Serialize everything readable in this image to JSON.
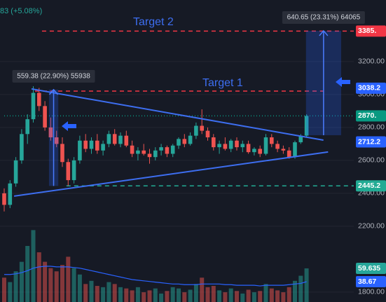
{
  "chart_data": {
    "type": "candlestick",
    "header": "83 (+5.08%)",
    "categories": [
      null,
      null,
      null,
      null,
      null,
      null,
      null,
      null,
      null,
      null,
      null,
      null,
      null,
      null,
      null,
      null,
      null,
      null,
      null,
      null,
      null,
      null,
      null,
      null,
      null,
      null,
      null,
      null,
      null,
      null,
      null,
      null,
      null,
      null,
      null,
      null,
      null,
      null,
      null,
      null,
      null,
      null,
      null,
      null,
      null,
      null,
      null,
      null,
      null,
      null,
      null,
      null,
      null
    ],
    "ohlc": [
      [
        2400,
        2430,
        2290,
        2330
      ],
      [
        2330,
        2480,
        2310,
        2460
      ],
      [
        2460,
        2620,
        2440,
        2600
      ],
      [
        2600,
        2790,
        2580,
        2760
      ],
      [
        2760,
        2880,
        2700,
        2850
      ],
      [
        2850,
        3050,
        2830,
        3010
      ],
      [
        3010,
        3040,
        2900,
        2930
      ],
      [
        2930,
        2960,
        2780,
        2800
      ],
      [
        2800,
        2860,
        2720,
        2740
      ],
      [
        2740,
        2780,
        2680,
        2700
      ],
      [
        2700,
        2740,
        2560,
        2590
      ],
      [
        2590,
        2610,
        2445,
        2480
      ],
      [
        2480,
        2620,
        2460,
        2600
      ],
      [
        2600,
        2750,
        2580,
        2720
      ],
      [
        2720,
        2760,
        2650,
        2670
      ],
      [
        2670,
        2740,
        2640,
        2720
      ],
      [
        2720,
        2760,
        2640,
        2660
      ],
      [
        2660,
        2720,
        2630,
        2700
      ],
      [
        2700,
        2780,
        2680,
        2760
      ],
      [
        2760,
        2790,
        2690,
        2700
      ],
      [
        2700,
        2770,
        2680,
        2750
      ],
      [
        2750,
        2780,
        2680,
        2690
      ],
      [
        2690,
        2720,
        2620,
        2640
      ],
      [
        2640,
        2680,
        2600,
        2660
      ],
      [
        2660,
        2700,
        2630,
        2640
      ],
      [
        2640,
        2670,
        2580,
        2620
      ],
      [
        2620,
        2680,
        2600,
        2660
      ],
      [
        2660,
        2700,
        2630,
        2680
      ],
      [
        2680,
        2690,
        2620,
        2640
      ],
      [
        2640,
        2700,
        2620,
        2690
      ],
      [
        2690,
        2740,
        2670,
        2730
      ],
      [
        2730,
        2760,
        2680,
        2700
      ],
      [
        2700,
        2770,
        2690,
        2750
      ],
      [
        2750,
        2830,
        2730,
        2810
      ],
      [
        2810,
        2910,
        2760,
        2780
      ],
      [
        2780,
        2800,
        2720,
        2740
      ],
      [
        2740,
        2760,
        2660,
        2680
      ],
      [
        2680,
        2720,
        2640,
        2700
      ],
      [
        2700,
        2740,
        2660,
        2670
      ],
      [
        2670,
        2730,
        2650,
        2720
      ],
      [
        2720,
        2740,
        2660,
        2680
      ],
      [
        2680,
        2720,
        2650,
        2700
      ],
      [
        2700,
        2720,
        2640,
        2650
      ],
      [
        2650,
        2680,
        2630,
        2670
      ],
      [
        2670,
        2690,
        2620,
        2640
      ],
      [
        2640,
        2760,
        2630,
        2740
      ],
      [
        2740,
        2760,
        2680,
        2700
      ],
      [
        2700,
        2720,
        2650,
        2670
      ],
      [
        2670,
        2690,
        2640,
        2660
      ],
      [
        2660,
        2680,
        2610,
        2620
      ],
      [
        2620,
        2720,
        2610,
        2710
      ],
      [
        2710,
        2760,
        2700,
        2750
      ],
      [
        2750,
        2880,
        2740,
        2870
      ]
    ],
    "up_color": "#26a69a",
    "down_color": "#ef5350",
    "ylim": [
      1740,
      3574
    ],
    "yticks": [
      {
        "value": 3200,
        "label": "3200.00"
      },
      {
        "value": 3000,
        "label": "3000.00"
      },
      {
        "value": 2800,
        "label": "2800.00"
      },
      {
        "value": 2600,
        "label": "2600.00"
      },
      {
        "value": 2400,
        "label": "2400.00"
      },
      {
        "value": 2200,
        "label": "2200.00"
      },
      {
        "value": 1800,
        "label": "1800.00"
      }
    ],
    "grid": true,
    "volume": {
      "values": [
        45,
        38,
        55,
        70,
        95,
        120,
        85,
        70,
        60,
        55,
        65,
        78,
        60,
        50,
        35,
        40,
        32,
        30,
        38,
        35,
        30,
        28,
        25,
        30,
        22,
        25,
        28,
        20,
        24,
        30,
        28,
        22,
        26,
        35,
        45,
        30,
        32,
        25,
        22,
        28,
        24,
        20,
        26,
        22,
        24,
        35,
        28,
        25,
        22,
        30,
        40,
        48,
        59.635
      ],
      "ma": [
        50,
        50,
        51,
        53,
        56,
        60,
        62,
        63,
        63,
        62,
        62,
        62,
        61,
        60,
        58,
        56,
        54,
        52,
        50,
        48,
        46,
        44,
        42,
        41,
        40,
        39,
        38,
        37,
        36,
        35,
        35,
        34,
        34,
        34,
        35,
        35,
        35,
        35,
        34,
        34,
        33,
        33,
        33,
        33,
        32,
        33,
        33,
        33,
        33,
        34,
        35,
        36,
        38.67
      ],
      "ma_color": "#2962ff",
      "ylim": [
        0,
        137
      ]
    },
    "levels": [
      {
        "value": 3385.1,
        "label": "3385.",
        "color": "#f23645",
        "line": "dashed",
        "from": 6.5
      },
      {
        "value": 3038.2,
        "color": "#2962ff"
      },
      {
        "value": 3021,
        "color": "#f23645",
        "line": "dashed",
        "from": 5.3,
        "to": 55
      },
      {
        "value": 2870.2,
        "label": "2870.",
        "color": "#089981",
        "line": "dotted",
        "from": 0
      },
      {
        "value": 2712.2,
        "color": "#2962ff"
      },
      {
        "value": 2445.2,
        "color": "#22ab94",
        "line": "dashed",
        "from": 10.7
      }
    ],
    "trendlines": [
      {
        "x": [
          4.7,
          54.9
        ],
        "y": [
          3034,
          2723
        ],
        "color": "#3d6ef0"
      },
      {
        "x": [
          1.7,
          55.7
        ],
        "y": [
          2383,
          2651
        ],
        "color": "#3d6ef0"
      }
    ],
    "measures": [
      {
        "label": "559.38 (22.90%) 55938",
        "x": [
          7.7,
          9.3
        ],
        "y": [
          2445,
          3030
        ]
      },
      {
        "label": "640.65 (23.31%) 64065",
        "x": [
          51.9,
          57.95
        ],
        "y": [
          2753,
          3387
        ]
      }
    ],
    "annotations": [
      "Target 2",
      "Target 1"
    ]
  }
}
